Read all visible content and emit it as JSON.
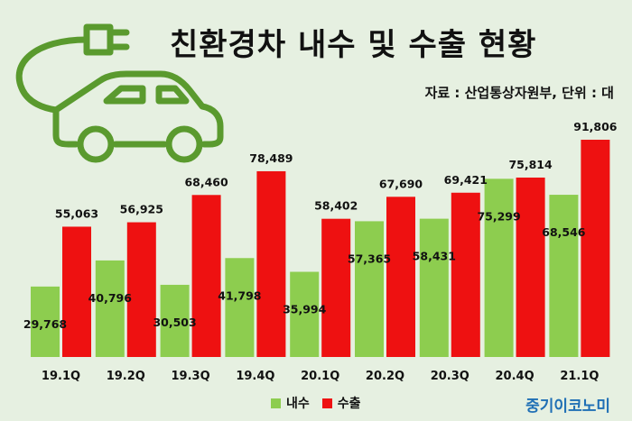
{
  "title": "친환경차 내수 및 수출 현황",
  "source": "자료 : 산업통상자원부, 단위 : 대",
  "brand": "중기이코노미",
  "icons": {
    "car": "electric-car-plug-icon"
  },
  "colors": {
    "domestic": "#8dcd4f",
    "export": "#ee1111",
    "background": "#e6f0e1",
    "icon": "#5a9a2e",
    "brand": "#1f6fb5"
  },
  "chart_data": {
    "type": "bar",
    "categories": [
      "19.1Q",
      "19.2Q",
      "19.3Q",
      "19.4Q",
      "20.1Q",
      "20.2Q",
      "20.3Q",
      "20.4Q",
      "21.1Q"
    ],
    "series": [
      {
        "name": "내수",
        "values": [
          29768,
          40796,
          30503,
          41798,
          35994,
          57365,
          58431,
          75299,
          68546
        ]
      },
      {
        "name": "수출",
        "values": [
          55063,
          56925,
          68460,
          78489,
          58402,
          67690,
          69421,
          75814,
          91806
        ]
      }
    ],
    "value_labels": {
      "domestic": [
        "29,768",
        "40,796",
        "30,503",
        "41,798",
        "35,994",
        "57,365",
        "58,431",
        "75,299",
        "68,546"
      ],
      "export": [
        "55,063",
        "56,925",
        "68,460",
        "78,489",
        "58,402",
        "67,690",
        "69,421",
        "75,814",
        "91,806"
      ]
    },
    "title": "",
    "xlabel": "",
    "ylabel": "",
    "ylim": [
      0,
      95000
    ],
    "grid": false,
    "legend": "bottom-center"
  }
}
